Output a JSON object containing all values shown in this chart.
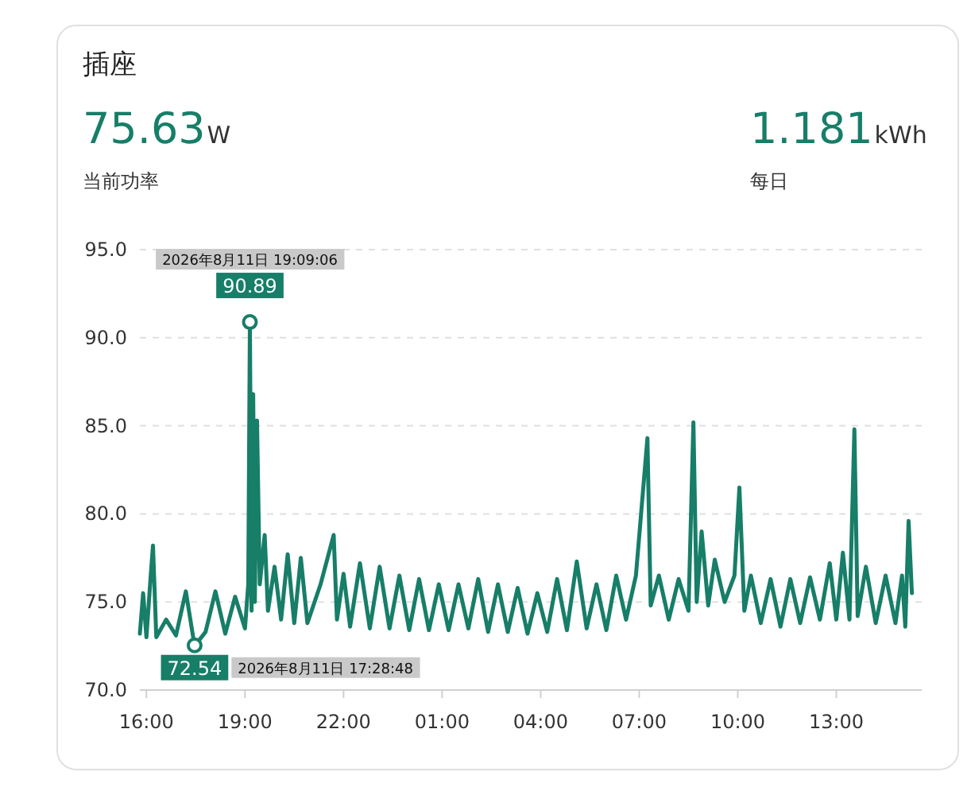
{
  "chart_data": {
    "type": "line",
    "title": "插座",
    "annotations": [
      "75.63",
      "W",
      "当前功率",
      "1.181",
      "kWh",
      "每日",
      "2026年8月11日 19:09:06",
      {
        "text": "90.89",
        "x": "2026-08-11T19:09",
        "y": 90.89
      },
      "2026年8月11日 17:28:48",
      {
        "text": "72.54",
        "x": "2026-08-11T17:28",
        "y": 72.54
      }
    ],
    "x": [
      "2026-08-11T15:48",
      "2026-08-11T15:54",
      "2026-08-11T16:00",
      "2026-08-11T16:09",
      "2026-08-11T16:12",
      "2026-08-11T16:18",
      "2026-08-11T16:36",
      "2026-08-11T16:54",
      "2026-08-11T17:12",
      "2026-08-11T17:28",
      "2026-08-11T17:48",
      "2026-08-11T18:06",
      "2026-08-11T18:24",
      "2026-08-11T18:42",
      "2026-08-11T19:00",
      "2026-08-11T19:06",
      "2026-08-11T19:09",
      "2026-08-11T19:12",
      "2026-08-11T19:15",
      "2026-08-11T19:18",
      "2026-08-11T19:22",
      "2026-08-11T19:27",
      "2026-08-11T19:36",
      "2026-08-11T19:42",
      "2026-08-11T19:54",
      "2026-08-11T20:06",
      "2026-08-11T20:18",
      "2026-08-11T20:30",
      "2026-08-11T20:42",
      "2026-08-11T20:54",
      "2026-08-11T21:18",
      "2026-08-11T21:42",
      "2026-08-11T21:48",
      "2026-08-11T22:00",
      "2026-08-11T22:12",
      "2026-08-11T22:30",
      "2026-08-11T22:48",
      "2026-08-11T23:06",
      "2026-08-11T23:24",
      "2026-08-11T23:42",
      "2026-08-12T00:00",
      "2026-08-12T00:18",
      "2026-08-12T00:36",
      "2026-08-12T00:54",
      "2026-08-12T01:12",
      "2026-08-12T01:30",
      "2026-08-12T01:48",
      "2026-08-12T02:06",
      "2026-08-12T02:24",
      "2026-08-12T02:42",
      "2026-08-12T03:00",
      "2026-08-12T03:18",
      "2026-08-12T03:36",
      "2026-08-12T03:54",
      "2026-08-12T04:12",
      "2026-08-12T04:30",
      "2026-08-12T04:48",
      "2026-08-12T05:06",
      "2026-08-12T05:24",
      "2026-08-12T05:42",
      "2026-08-12T06:00",
      "2026-08-12T06:18",
      "2026-08-12T06:36",
      "2026-08-12T06:54",
      "2026-08-12T07:15",
      "2026-08-12T07:21",
      "2026-08-12T07:36",
      "2026-08-12T07:54",
      "2026-08-12T08:12",
      "2026-08-12T08:30",
      "2026-08-12T08:39",
      "2026-08-12T08:45",
      "2026-08-12T08:54",
      "2026-08-12T09:06",
      "2026-08-12T09:18",
      "2026-08-12T09:36",
      "2026-08-12T09:54",
      "2026-08-12T10:03",
      "2026-08-12T10:12",
      "2026-08-12T10:24",
      "2026-08-12T10:42",
      "2026-08-12T11:00",
      "2026-08-12T11:18",
      "2026-08-12T11:36",
      "2026-08-12T11:54",
      "2026-08-12T12:12",
      "2026-08-12T12:30",
      "2026-08-12T12:48",
      "2026-08-12T13:00",
      "2026-08-12T13:12",
      "2026-08-12T13:24",
      "2026-08-12T13:33",
      "2026-08-12T13:39",
      "2026-08-12T13:54",
      "2026-08-12T14:12",
      "2026-08-12T14:30",
      "2026-08-12T14:48",
      "2026-08-12T15:00",
      "2026-08-12T15:06",
      "2026-08-12T15:12",
      "2026-08-12T15:18"
    ],
    "series": [
      {
        "color": "#177e68",
        "values": [
          73.2,
          75.5,
          73.0,
          77.0,
          78.2,
          73.0,
          74.0,
          73.1,
          75.6,
          72.5,
          73.3,
          75.6,
          73.2,
          75.3,
          73.5,
          76.0,
          90.9,
          74.5,
          86.8,
          75.0,
          85.3,
          76.0,
          78.8,
          74.5,
          77.0,
          74.0,
          77.7,
          73.8,
          77.5,
          73.8,
          76.0,
          78.8,
          74.0,
          76.6,
          73.6,
          77.2,
          73.5,
          77.0,
          73.5,
          76.5,
          73.4,
          76.3,
          73.4,
          76.0,
          73.4,
          76.0,
          73.5,
          76.3,
          73.3,
          76.0,
          73.3,
          75.8,
          73.2,
          75.5,
          73.3,
          76.3,
          73.4,
          77.3,
          73.5,
          76.0,
          73.4,
          76.5,
          74.0,
          76.5,
          84.3,
          74.8,
          76.5,
          74.0,
          76.3,
          74.5,
          85.2,
          75.0,
          79.0,
          74.8,
          77.4,
          75.0,
          76.5,
          81.5,
          74.5,
          76.5,
          73.8,
          76.3,
          73.6,
          76.3,
          73.8,
          76.4,
          74.0,
          77.2,
          74.0,
          77.8,
          74.0,
          84.8,
          74.2,
          77.0,
          73.8,
          76.5,
          73.8,
          76.5,
          73.6,
          79.6,
          75.5
        ]
      }
    ],
    "xlim": [
      "2026-08-11T15:48",
      "2026-08-12T15:36"
    ],
    "xticks": [
      {
        "value": "2026-08-11T16:00",
        "label": "16:00"
      },
      {
        "value": "2026-08-11T19:00",
        "label": "19:00"
      },
      {
        "value": "2026-08-11T22:00",
        "label": "22:00"
      },
      {
        "value": "2026-08-12T01:00",
        "label": "01:00"
      },
      {
        "value": "2026-08-12T04:00",
        "label": "04:00"
      },
      {
        "value": "2026-08-12T07:00",
        "label": "07:00"
      },
      {
        "value": "2026-08-12T10:00",
        "label": "10:00"
      },
      {
        "value": "2026-08-12T13:00",
        "label": "13:00"
      }
    ],
    "ylim": [
      70,
      95
    ],
    "yticks": [
      {
        "value": 70,
        "label": "70.0"
      },
      {
        "value": 75,
        "label": "75.0"
      },
      {
        "value": 80,
        "label": "80.0"
      },
      {
        "value": 85,
        "label": "85.0"
      },
      {
        "value": 90,
        "label": "90.0"
      },
      {
        "value": 95,
        "label": "95.0"
      }
    ],
    "grid": "y",
    "marker": "none",
    "line_style": "solid"
  }
}
